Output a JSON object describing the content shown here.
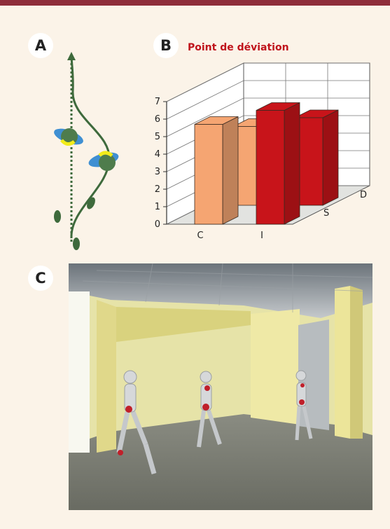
{
  "panels": {
    "a": {
      "label": "A"
    },
    "b": {
      "label": "B",
      "title": "Point de déviation"
    },
    "c": {
      "label": "C"
    }
  },
  "colors": {
    "accent_bar": "#8e2d3a",
    "title_red": "#c0141c",
    "bar_orange": "#f5a572",
    "bar_red": "#c8141a",
    "path_green": "#3e6a3c",
    "head_green": "#4e7c4c",
    "shoulder_blue": "#3f8fd2",
    "face_yellow": "#f2ec1a"
  },
  "chart_data": {
    "type": "bar",
    "categories": [
      "C",
      "I"
    ],
    "depth_categories": [
      "S",
      "D"
    ],
    "series": [
      {
        "values": [
          5.7,
          6.5
        ]
      },
      {
        "values": [
          4.5,
          5.0
        ]
      }
    ],
    "yticks": [
      0,
      1,
      2,
      3,
      4,
      5,
      6,
      7
    ],
    "ylim": [
      0,
      7
    ],
    "grid": true,
    "projection": "3d"
  },
  "icons": [
    "walking-path-diagram",
    "walker-top-view",
    "footprint",
    "virtual-room-humanoids"
  ]
}
